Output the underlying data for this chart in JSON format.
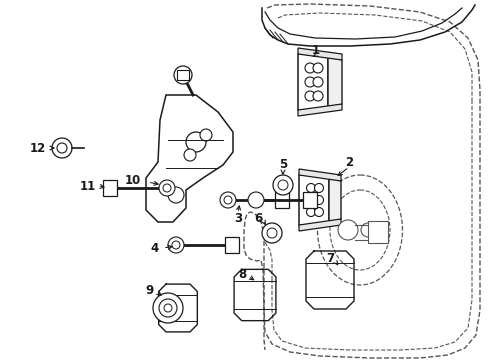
{
  "bg_color": "#ffffff",
  "lc": "#1a1a1a",
  "lc_dash": "#555555",
  "lw": 1.0,
  "fig_w": 4.89,
  "fig_h": 3.6,
  "dpi": 100
}
